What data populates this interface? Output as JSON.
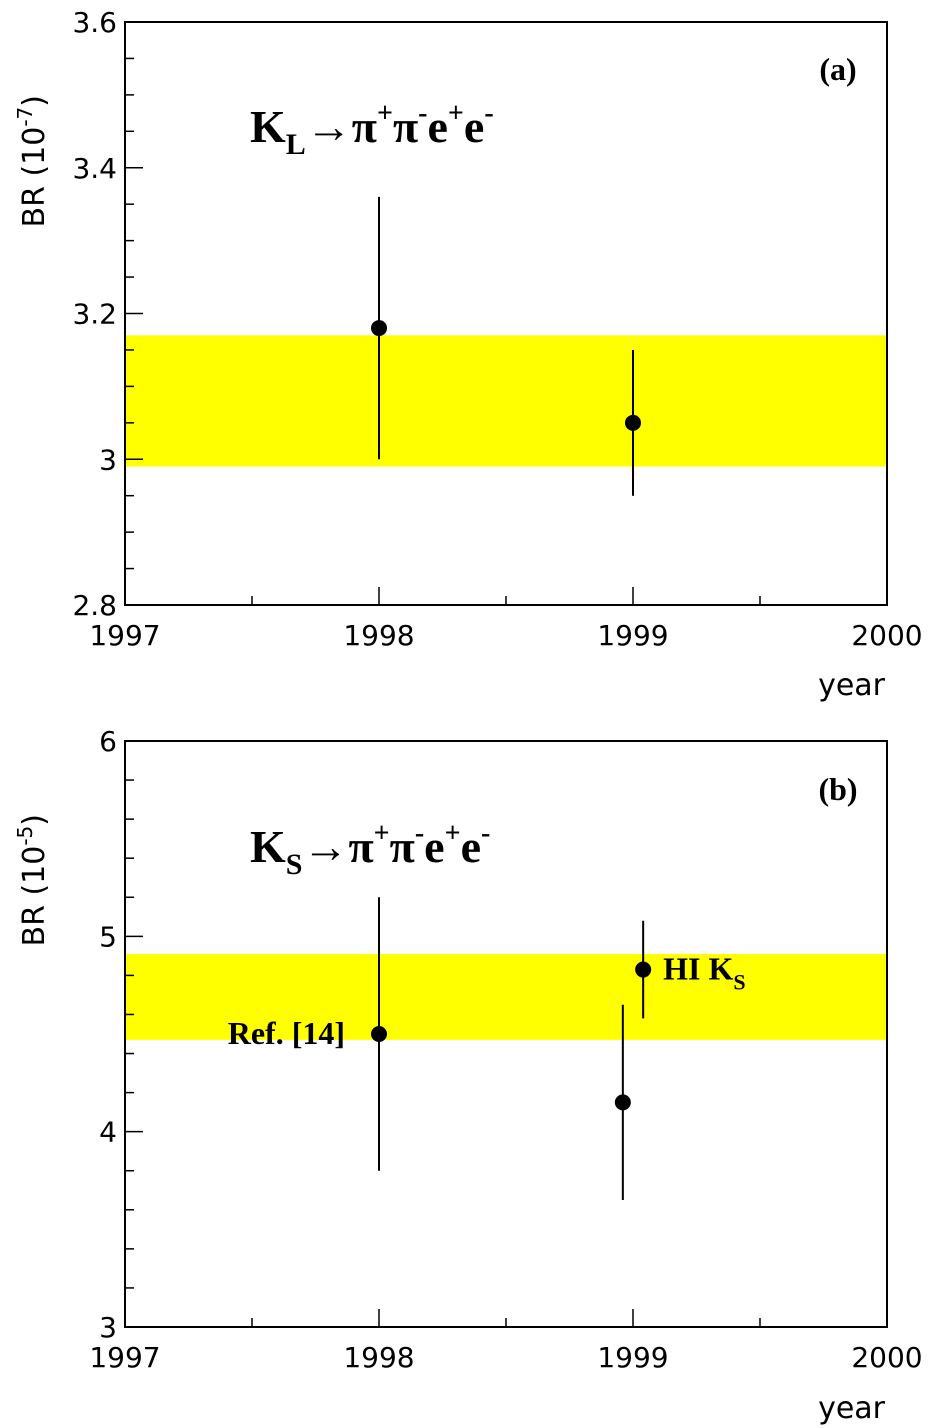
{
  "chart_data": [
    {
      "type": "scatter",
      "panel_label": "(a)",
      "process_label": {
        "main": "K",
        "sub": "L",
        "arrow": "→",
        "products": [
          {
            "base": "π",
            "sup": "+"
          },
          {
            "base": "π",
            "sup": "-"
          },
          {
            "base": "e",
            "sup": "+"
          },
          {
            "base": "e",
            "sup": "-"
          }
        ]
      },
      "xlabel": "year",
      "ylabel": "BR",
      "ylabel_unit": {
        "base": "(10",
        "exp": "-7",
        "close": ")"
      },
      "xlim": [
        1997,
        2000
      ],
      "ylim": [
        2.8,
        3.6
      ],
      "xticks": [
        1997,
        1998,
        1999,
        2000
      ],
      "xtick_labels": [
        "1997",
        "1998",
        "1999",
        "2000"
      ],
      "yticks": [
        2.8,
        3.0,
        3.2,
        3.4,
        3.6
      ],
      "ytick_labels": [
        "2.8",
        "3",
        "3.2",
        "3.4",
        "3.6"
      ],
      "y_minor_step": 0.05,
      "x_minor_step": 0.5,
      "band": {
        "low": 2.99,
        "high": 3.17,
        "color": "#ffff00"
      },
      "series": [
        {
          "points": [
            {
              "x": 1998.0,
              "y": 3.18,
              "yerr_low": 3.0,
              "yerr_high": 3.36
            },
            {
              "x": 1999.0,
              "y": 3.05,
              "yerr_low": 2.95,
              "yerr_high": 3.15
            }
          ]
        }
      ],
      "annotations": []
    },
    {
      "type": "scatter",
      "panel_label": "(b)",
      "process_label": {
        "main": "K",
        "sub": "S",
        "arrow": "→",
        "products": [
          {
            "base": "π",
            "sup": "+"
          },
          {
            "base": "π",
            "sup": "-"
          },
          {
            "base": "e",
            "sup": "+"
          },
          {
            "base": "e",
            "sup": "-"
          }
        ]
      },
      "xlabel": "year",
      "ylabel": "BR",
      "ylabel_unit": {
        "base": "(10",
        "exp": "-5",
        "close": ")"
      },
      "xlim": [
        1997,
        2000
      ],
      "ylim": [
        3,
        6
      ],
      "xticks": [
        1997,
        1998,
        1999,
        2000
      ],
      "xtick_labels": [
        "1997",
        "1998",
        "1999",
        "2000"
      ],
      "yticks": [
        3,
        4,
        5,
        6
      ],
      "ytick_labels": [
        "3",
        "4",
        "5",
        "6"
      ],
      "y_minor_step": 0.2,
      "x_minor_step": 0.5,
      "band": {
        "low": 4.47,
        "high": 4.91,
        "color": "#ffff00"
      },
      "series": [
        {
          "points": [
            {
              "x": 1998.0,
              "y": 4.5,
              "yerr_low": 3.8,
              "yerr_high": 5.2
            },
            {
              "x": 1998.96,
              "y": 4.15,
              "yerr_low": 3.65,
              "yerr_high": 4.65
            },
            {
              "x": 1999.04,
              "y": 4.83,
              "yerr_low": 4.58,
              "yerr_high": 5.08
            }
          ]
        }
      ],
      "annotations": [
        {
          "text": "Ref. [14]",
          "x": 1998.0,
          "y": 4.5,
          "side": "left"
        },
        {
          "text": "HI K",
          "sub": "S",
          "x": 1999.04,
          "y": 4.83,
          "side": "right"
        }
      ]
    }
  ]
}
